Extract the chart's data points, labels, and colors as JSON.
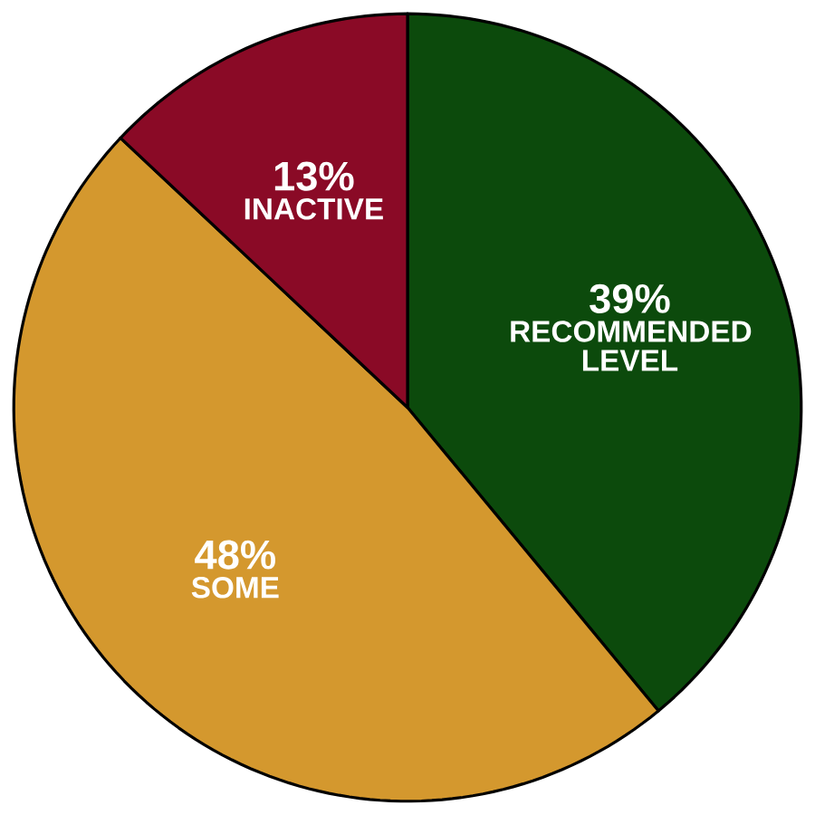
{
  "chart_data": {
    "type": "pie",
    "categories": [
      "RECOMMENDED LEVEL",
      "SOME",
      "INACTIVE"
    ],
    "values": [
      39,
      48,
      13
    ],
    "value_labels": [
      "39%",
      "48%",
      "13%"
    ],
    "colors": [
      "#0c4a0c",
      "#d4982e",
      "#8a0a26"
    ]
  }
}
